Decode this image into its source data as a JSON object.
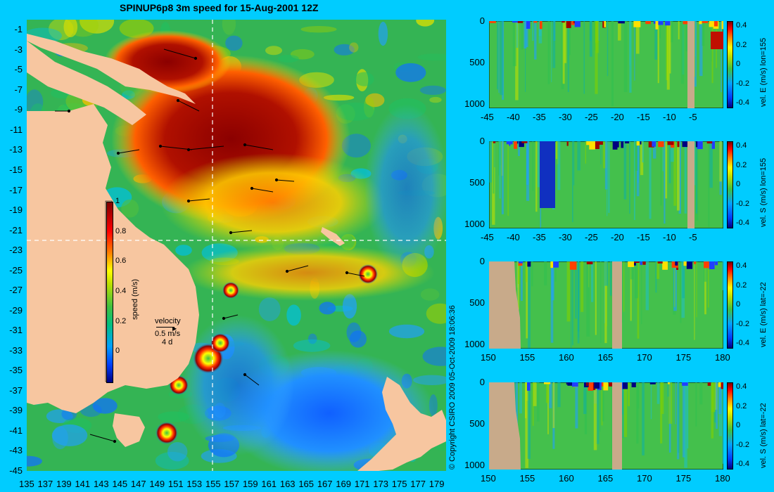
{
  "colors": {
    "background": "#00ccff",
    "land": "#f7c6a0",
    "section_land": "#c8aa8a",
    "colormap": [
      "#000080",
      "#0000ff",
      "#0080ff",
      "#00c0ff",
      "#00c080",
      "#40c040",
      "#c0e000",
      "#ffff00",
      "#ff8000",
      "#ff0000",
      "#800000"
    ]
  },
  "chart_data": [
    {
      "type": "heatmap",
      "name": "surface-speed-map",
      "title": "SPINUP6p8 3m speed for 15-Aug-2001 12Z",
      "x_ticks": [
        "135",
        "137",
        "139",
        "141",
        "143",
        "145",
        "147",
        "149",
        "151",
        "153",
        "155",
        "157",
        "159",
        "161",
        "163",
        "165",
        "167",
        "169",
        "171",
        "173",
        "175",
        "177",
        "179"
      ],
      "y_ticks": [
        "-1",
        "-3",
        "-5",
        "-7",
        "-9",
        "-11",
        "-13",
        "-15",
        "-17",
        "-19",
        "-21",
        "-23",
        "-25",
        "-27",
        "-29",
        "-31",
        "-33",
        "-35",
        "-37",
        "-39",
        "-41",
        "-43",
        "-45"
      ],
      "xlim": [
        135,
        180
      ],
      "ylim": [
        -45,
        0
      ],
      "section_lines": {
        "lon": 155,
        "lat": -22
      },
      "colorbar": {
        "label": "speed (m/s)",
        "ticks": [
          "0",
          "0.2",
          "0.4",
          "0.6",
          "0.8",
          "1"
        ],
        "range": [
          -0.2,
          1.0
        ]
      },
      "vector_legend": {
        "title": "velocity",
        "speed": "0.5 m/s",
        "duration": "4 d"
      },
      "copyright": "© Copyright CSIRO 2009   05-Oct-2009 18:06:36"
    },
    {
      "type": "heatmap",
      "name": "section-east-velocity-lon155",
      "colorbar_label": "vel. E (m/s) lon=155",
      "x_ticks": [
        "-45",
        "-40",
        "-35",
        "-30",
        "-25",
        "-20",
        "-15",
        "-10",
        "-5"
      ],
      "y_ticks": [
        "0",
        "500",
        "1000"
      ],
      "xlim": [
        -45,
        0
      ],
      "ylim": [
        1050,
        0
      ],
      "colorbar_ticks": [
        "0.4",
        "0.2",
        "0",
        "-0.2",
        "-0.4"
      ],
      "colorbar_range": [
        -0.4,
        0.4
      ]
    },
    {
      "type": "heatmap",
      "name": "section-south-velocity-lon155",
      "colorbar_label": "vel. S (m/s) lon=155",
      "x_ticks": [
        "-45",
        "-40",
        "-35",
        "-30",
        "-25",
        "-20",
        "-15",
        "-10",
        "-5"
      ],
      "y_ticks": [
        "0",
        "500",
        "1000"
      ],
      "xlim": [
        -45,
        0
      ],
      "ylim": [
        1050,
        0
      ],
      "colorbar_ticks": [
        "0.4",
        "0.2",
        "0",
        "-0.2",
        "-0.4"
      ],
      "colorbar_range": [
        -0.4,
        0.4
      ]
    },
    {
      "type": "heatmap",
      "name": "section-east-velocity-lat-22",
      "colorbar_label": "vel. E (m/s) lat=-22",
      "x_ticks": [
        "150",
        "155",
        "160",
        "165",
        "170",
        "175",
        "180"
      ],
      "y_ticks": [
        "0",
        "500",
        "1000"
      ],
      "xlim": [
        150,
        180
      ],
      "ylim": [
        1050,
        0
      ],
      "colorbar_ticks": [
        "0.4",
        "0.2",
        "0",
        "-0.2",
        "-0.4"
      ],
      "colorbar_range": [
        -0.4,
        0.4
      ]
    },
    {
      "type": "heatmap",
      "name": "section-south-velocity-lat-22",
      "colorbar_label": "vel. S (m/s) lat=-22",
      "x_ticks": [
        "150",
        "155",
        "160",
        "165",
        "170",
        "175",
        "180"
      ],
      "y_ticks": [
        "0",
        "500",
        "1000"
      ],
      "xlim": [
        150,
        180
      ],
      "ylim": [
        1050,
        0
      ],
      "colorbar_ticks": [
        "0.4",
        "0.2",
        "0",
        "-0.2",
        "-0.4"
      ],
      "colorbar_range": [
        -0.4,
        0.4
      ]
    }
  ]
}
